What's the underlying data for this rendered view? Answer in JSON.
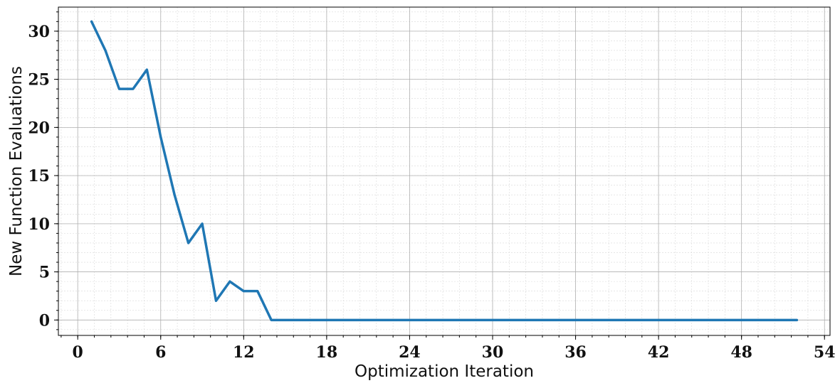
{
  "chart_data": {
    "type": "line",
    "title": "",
    "xlabel": "Optimization Iteration",
    "ylabel": "New Function Evaluations",
    "xlim": [
      -1.4,
      54.4
    ],
    "ylim": [
      -1.6,
      32.5
    ],
    "xticks": [
      0,
      6,
      12,
      18,
      24,
      30,
      36,
      42,
      48,
      54
    ],
    "yticks": [
      0,
      5,
      10,
      15,
      20,
      25,
      30
    ],
    "x_minor_step": 1.2,
    "y_minor_step": 1,
    "grid": true,
    "legend": "none",
    "series": [
      {
        "color": "#1f77b4",
        "x": [
          1,
          2,
          3,
          4,
          5,
          6,
          7,
          8,
          9,
          10,
          11,
          12,
          13,
          14,
          15,
          16,
          17,
          18,
          19,
          20,
          21,
          22,
          23,
          24,
          25,
          26,
          27,
          28,
          29,
          30,
          31,
          32,
          33,
          34,
          35,
          36,
          37,
          38,
          39,
          40,
          41,
          42,
          43,
          44,
          45,
          46,
          47,
          48,
          49,
          50,
          51,
          52
        ],
        "y": [
          31,
          28,
          24,
          24,
          26,
          19,
          13,
          8,
          10,
          2,
          4,
          3,
          3,
          0,
          0,
          0,
          0,
          0,
          0,
          0,
          0,
          0,
          0,
          0,
          0,
          0,
          0,
          0,
          0,
          0,
          0,
          0,
          0,
          0,
          0,
          0,
          0,
          0,
          0,
          0,
          0,
          0,
          0,
          0,
          0,
          0,
          0,
          0,
          0,
          0,
          0,
          0
        ]
      }
    ]
  }
}
